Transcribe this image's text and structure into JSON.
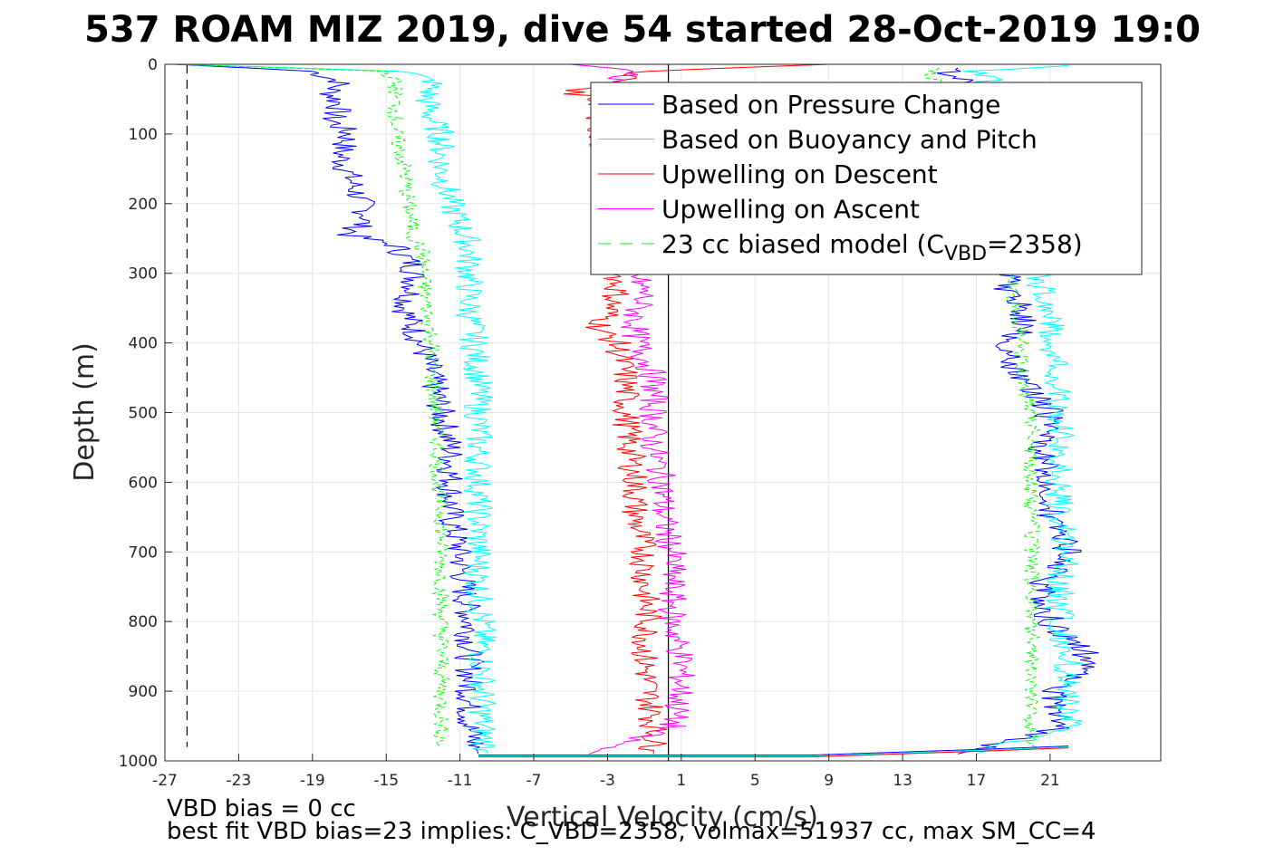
{
  "chart_data": {
    "type": "line",
    "title": "537 ROAM MIZ 2019, dive 54 started 28-Oct-2019 19:0",
    "xlabel": "Vertical Velocity (cm/s)",
    "ylabel": "Depth (m)",
    "xlim": [
      -27,
      27
    ],
    "ylim": [
      0,
      1000
    ],
    "y_reversed": true,
    "grid": true,
    "xticks": [
      -27,
      -23,
      -19,
      -15,
      -11,
      -7,
      -3,
      1,
      5,
      9,
      13,
      17,
      21
    ],
    "yticks": [
      0,
      100,
      200,
      300,
      400,
      500,
      600,
      700,
      800,
      900,
      1000
    ],
    "legend_position": "top-right",
    "reference_lines": [
      {
        "kind": "vertical-dashed",
        "x": -25.8,
        "y_range": [
          0,
          980
        ],
        "color": "#000000"
      },
      {
        "kind": "vertical-solid",
        "x": 0.3,
        "y_range": [
          0,
          1000
        ],
        "color": "#000000"
      }
    ],
    "series": [
      {
        "name": "Based on Pressure Change",
        "color": "#0000ff",
        "style": "solid",
        "descent": {
          "depth": [
            0,
            10,
            25,
            40,
            60,
            80,
            100,
            130,
            160,
            190,
            220,
            245,
            260,
            290,
            320,
            350,
            380,
            410,
            450,
            500,
            550,
            600,
            650,
            700,
            750,
            800,
            850,
            900,
            950,
            990
          ],
          "velocity": [
            -26.5,
            -19.0,
            -17.5,
            -18.0,
            -17.5,
            -18.0,
            -17.0,
            -17.5,
            -17.0,
            -16.5,
            -16.0,
            -17.0,
            -14.5,
            -13.5,
            -13.5,
            -14.0,
            -13.5,
            -13.0,
            -12.5,
            -12.0,
            -11.5,
            -11.5,
            -11.5,
            -11.0,
            -10.8,
            -10.5,
            -10.5,
            -10.5,
            -10.5,
            -10.0
          ]
        },
        "ascent": {
          "depth": [
            990,
            950,
            900,
            860,
            800,
            750,
            700,
            650,
            600,
            550,
            500,
            450,
            410,
            380,
            350,
            320,
            300
          ],
          "velocity": [
            16.0,
            22.0,
            21.0,
            23.5,
            21.0,
            20.5,
            22.0,
            21.0,
            21.0,
            20.5,
            21.0,
            19.5,
            18.5,
            19.5,
            19.5,
            18.5,
            18.8
          ]
        },
        "upper_ascent": {
          "depth": [
            5,
            15,
            25,
            35
          ],
          "velocity": [
            16.0,
            15.5,
            16.5,
            15.5
          ]
        }
      },
      {
        "name": "Based on Buoyancy and Pitch",
        "color": "#00ffff",
        "style": "solid",
        "descent": {
          "depth": [
            0,
            10,
            25,
            50,
            80,
            100,
            150,
            200,
            230,
            260,
            300,
            350,
            400,
            450,
            500,
            550,
            600,
            650,
            700,
            750,
            800,
            850,
            900,
            950,
            990
          ],
          "velocity": [
            -26.5,
            -14.0,
            -12.5,
            -12.8,
            -12.5,
            -12.0,
            -12.0,
            -11.5,
            -11.0,
            -10.5,
            -10.5,
            -10.5,
            -10.2,
            -10.0,
            -10.0,
            -10.0,
            -10.0,
            -10.0,
            -10.0,
            -10.0,
            -9.8,
            -9.8,
            -9.8,
            -9.8,
            -9.5
          ]
        },
        "ascent": {
          "depth": [
            990,
            950,
            900,
            860,
            800,
            750,
            700,
            650,
            600,
            550,
            500,
            450,
            400,
            350,
            320,
            300
          ],
          "velocity": [
            17.0,
            22.0,
            22.0,
            22.0,
            21.5,
            21.5,
            22.0,
            21.5,
            21.5,
            21.5,
            21.5,
            21.3,
            21.0,
            21.0,
            20.5,
            20.5
          ]
        },
        "upper_ascent": {
          "depth": [
            2,
            10,
            20,
            30
          ],
          "velocity": [
            22.0,
            17.0,
            18.0,
            17.0
          ]
        }
      },
      {
        "name": "Upwelling on Descent",
        "color": "#ff0000",
        "style": "solid",
        "profile": {
          "depth": [
            0,
            10,
            20,
            30,
            40,
            50,
            300,
            330,
            360,
            380,
            400,
            450,
            500,
            550,
            600,
            650,
            700,
            750,
            800,
            850,
            900,
            950,
            990
          ],
          "velocity": [
            9.0,
            -1.0,
            -2.0,
            -3.0,
            -5.0,
            -3.5,
            -2.5,
            -2.5,
            -3.0,
            -3.5,
            -2.5,
            -2.0,
            -2.0,
            -1.8,
            -1.5,
            -1.5,
            -1.0,
            -1.0,
            -0.8,
            -1.0,
            -0.8,
            -0.5,
            -0.5
          ]
        }
      },
      {
        "name": "Upwelling on Ascent",
        "color": "#ff00ff",
        "style": "solid",
        "profile": {
          "depth": [
            0,
            10,
            20,
            30,
            300,
            330,
            360,
            390,
            420,
            450,
            500,
            550,
            600,
            650,
            700,
            750,
            800,
            850,
            900,
            950,
            990
          ],
          "velocity": [
            -5.0,
            -1.0,
            -2.5,
            -1.5,
            -1.5,
            -1.0,
            -1.5,
            -1.5,
            -1.0,
            -0.5,
            -0.5,
            -0.5,
            0.0,
            0.0,
            0.5,
            0.5,
            0.5,
            1.0,
            1.0,
            0.5,
            -4.0
          ]
        }
      },
      {
        "name": "23 cc biased model (C",
        "name_subscript": "VBD",
        "name_suffix": "=2358)",
        "color": "#00ff00",
        "style": "dashed",
        "descent": {
          "depth": [
            0,
            10,
            25,
            50,
            100,
            150,
            200,
            250,
            270,
            300,
            350,
            400,
            450,
            500,
            550,
            600,
            650,
            700,
            750,
            800,
            850,
            900,
            950,
            980
          ],
          "velocity": [
            -26.5,
            -15.0,
            -14.5,
            -14.5,
            -14.5,
            -14.0,
            -13.8,
            -13.5,
            -13.0,
            -13.0,
            -12.8,
            -12.5,
            -12.5,
            -12.3,
            -12.2,
            -12.2,
            -12.0,
            -12.0,
            -12.0,
            -12.0,
            -12.0,
            -12.0,
            -12.0,
            -12.0
          ]
        },
        "ascent": {
          "depth": [
            980,
            950,
            900,
            850,
            800,
            750,
            700,
            650,
            600,
            550,
            500,
            450,
            400,
            350,
            300
          ],
          "velocity": [
            20.0,
            20.0,
            20.0,
            20.0,
            20.0,
            20.0,
            20.0,
            20.0,
            20.0,
            20.0,
            20.0,
            19.5,
            19.5,
            19.0,
            19.0
          ]
        },
        "upper_ascent": {
          "depth": [
            5,
            15,
            30
          ],
          "velocity": [
            15.0,
            14.5,
            15.0
          ]
        }
      }
    ],
    "bottom_transition": {
      "depth": 993,
      "description_points": [
        [
          -10.0,
          993
        ],
        [
          0,
          993
        ],
        [
          8,
          993
        ],
        [
          17,
          985
        ],
        [
          22,
          980
        ]
      ]
    },
    "annotations": [
      "VBD bias = 0 cc",
      "best fit VBD bias=23 implies: C_VBD=2358, volmax=51937 cc, max SM_CC=4"
    ]
  },
  "colors": {
    "grid": "#e6e6e6",
    "axis": "#262626"
  }
}
